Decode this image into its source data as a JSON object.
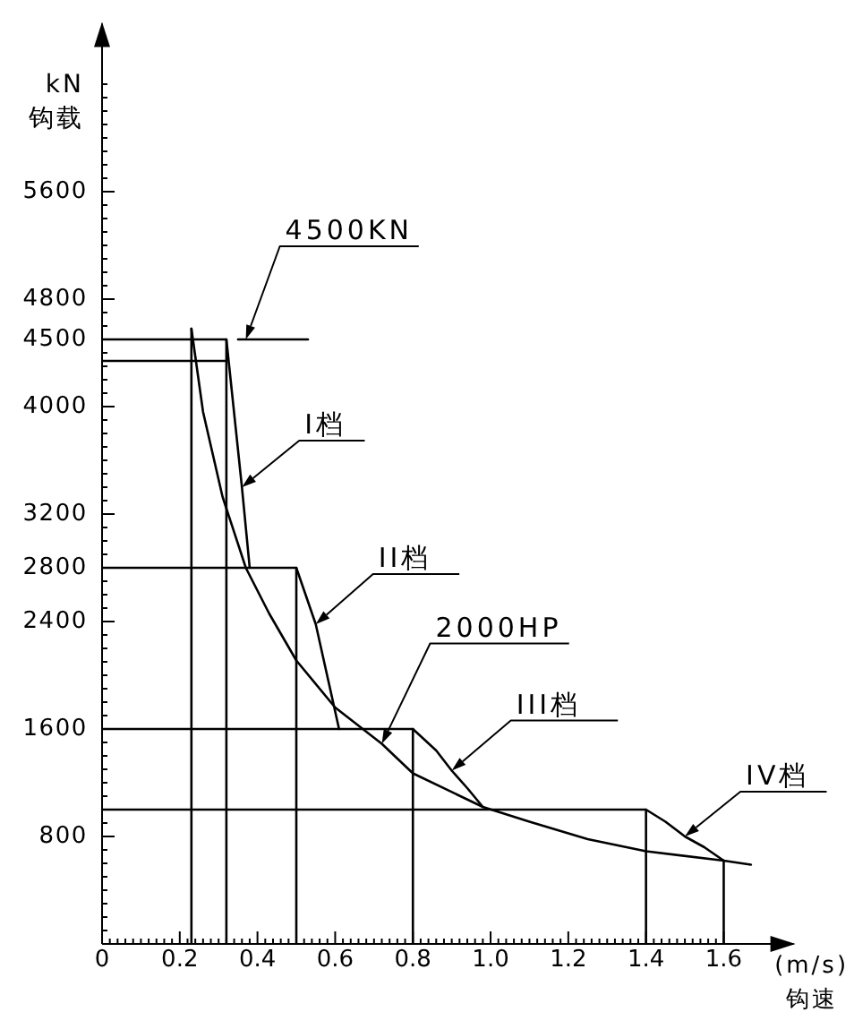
{
  "chart_data": {
    "type": "line",
    "xlabel": "(m/s) 钩速",
    "ylabel": "kN 钩载",
    "xlim": [
      0,
      1.78
    ],
    "ylim": [
      0,
      6850
    ],
    "xticks": [
      0,
      {
        "value": 0.02,
        "label": null
      },
      {
        "value": 0.04,
        "label": null
      },
      {
        "value": 0.06,
        "label": null
      },
      {
        "value": 0.08,
        "label": null
      },
      {
        "value": 0.1,
        "label": null
      },
      {
        "value": 0.12,
        "label": null
      },
      {
        "value": 0.14,
        "label": null
      },
      {
        "value": 0.16,
        "label": null
      },
      {
        "value": 0.18,
        "label": null
      },
      0.2,
      {
        "value": 0.22,
        "label": null
      },
      {
        "value": 0.24,
        "label": null
      },
      {
        "value": 0.26,
        "label": null
      },
      {
        "value": 0.28,
        "label": null
      },
      {
        "value": 0.3,
        "label": null
      },
      {
        "value": 0.32,
        "label": null
      },
      {
        "value": 0.34,
        "label": null
      },
      {
        "value": 0.36,
        "label": null
      },
      {
        "value": 0.38,
        "label": null
      },
      0.4,
      {
        "value": 0.42,
        "label": null
      },
      {
        "value": 0.44,
        "label": null
      },
      {
        "value": 0.46,
        "label": null
      },
      {
        "value": 0.48,
        "label": null
      },
      {
        "value": 0.5,
        "label": null
      },
      {
        "value": 0.52,
        "label": null
      },
      {
        "value": 0.54,
        "label": null
      },
      {
        "value": 0.56,
        "label": null
      },
      {
        "value": 0.58,
        "label": null
      },
      0.6,
      {
        "value": 0.62,
        "label": null
      },
      {
        "value": 0.64,
        "label": null
      },
      {
        "value": 0.66,
        "label": null
      },
      {
        "value": 0.68,
        "label": null
      },
      {
        "value": 0.7,
        "label": null
      },
      {
        "value": 0.72,
        "label": null
      },
      {
        "value": 0.74,
        "label": null
      },
      {
        "value": 0.76,
        "label": null
      },
      {
        "value": 0.78,
        "label": null
      },
      0.8,
      {
        "value": 0.82,
        "label": null
      },
      {
        "value": 0.84,
        "label": null
      },
      {
        "value": 0.86,
        "label": null
      },
      {
        "value": 0.88,
        "label": null
      },
      {
        "value": 0.9,
        "label": null
      },
      {
        "value": 0.92,
        "label": null
      },
      {
        "value": 0.94,
        "label": null
      },
      {
        "value": 0.96,
        "label": null
      },
      {
        "value": 0.98,
        "label": null
      },
      {
        "value": 1,
        "label": "1.0"
      },
      {
        "value": 1.02,
        "label": null
      },
      {
        "value": 1.04,
        "label": null
      },
      {
        "value": 1.06,
        "label": null
      },
      {
        "value": 1.08,
        "label": null
      },
      {
        "value": 1.1,
        "label": null
      },
      {
        "value": 1.12,
        "label": null
      },
      {
        "value": 1.14,
        "label": null
      },
      {
        "value": 1.16,
        "label": null
      },
      {
        "value": 1.18,
        "label": null
      },
      1.2,
      {
        "value": 1.22,
        "label": null
      },
      {
        "value": 1.24,
        "label": null
      },
      {
        "value": 1.26,
        "label": null
      },
      {
        "value": 1.28,
        "label": null
      },
      {
        "value": 1.3,
        "label": null
      },
      {
        "value": 1.32,
        "label": null
      },
      {
        "value": 1.34,
        "label": null
      },
      {
        "value": 1.36,
        "label": null
      },
      {
        "value": 1.38,
        "label": null
      },
      1.4,
      {
        "value": 1.42,
        "label": null
      },
      {
        "value": 1.44,
        "label": null
      },
      {
        "value": 1.46,
        "label": null
      },
      {
        "value": 1.48,
        "label": null
      },
      {
        "value": 1.5,
        "label": null
      },
      {
        "value": 1.52,
        "label": null
      },
      {
        "value": 1.54,
        "label": null
      },
      {
        "value": 1.56,
        "label": null
      },
      {
        "value": 1.58,
        "label": null
      },
      1.6
    ],
    "yticks": [
      {
        "value": 0,
        "label": null
      },
      {
        "value": 100,
        "label": null
      },
      {
        "value": 200,
        "label": null
      },
      {
        "value": 300,
        "label": null
      },
      {
        "value": 400,
        "label": null
      },
      {
        "value": 500,
        "label": null
      },
      {
        "value": 600,
        "label": null
      },
      {
        "value": 700,
        "label": null
      },
      800,
      {
        "value": 900,
        "label": null
      },
      {
        "value": 1000,
        "label": null
      },
      {
        "value": 1100,
        "label": null
      },
      {
        "value": 1200,
        "label": null
      },
      {
        "value": 1300,
        "label": null
      },
      {
        "value": 1400,
        "label": null
      },
      {
        "value": 1500,
        "label": null
      },
      1600,
      {
        "value": 1700,
        "label": null
      },
      {
        "value": 1800,
        "label": null
      },
      {
        "value": 1900,
        "label": null
      },
      {
        "value": 2000,
        "label": null
      },
      {
        "value": 2100,
        "label": null
      },
      {
        "value": 2200,
        "label": null
      },
      {
        "value": 2300,
        "label": null
      },
      2400,
      {
        "value": 2500,
        "label": null
      },
      {
        "value": 2600,
        "label": null
      },
      {
        "value": 2700,
        "label": null
      },
      2800,
      {
        "value": 2900,
        "label": null
      },
      {
        "value": 3000,
        "label": null
      },
      {
        "value": 3100,
        "label": null
      },
      3200,
      {
        "value": 3300,
        "label": null
      },
      {
        "value": 3400,
        "label": null
      },
      {
        "value": 3500,
        "label": null
      },
      {
        "value": 3600,
        "label": null
      },
      {
        "value": 3700,
        "label": null
      },
      {
        "value": 3800,
        "label": null
      },
      {
        "value": 3900,
        "label": null
      },
      4000,
      {
        "value": 4100,
        "label": null
      },
      {
        "value": 4200,
        "label": null
      },
      {
        "value": 4300,
        "label": null
      },
      {
        "value": 4400,
        "label": null
      },
      4500,
      {
        "value": 4600,
        "label": null
      },
      {
        "value": 4700,
        "label": null
      },
      4800,
      {
        "value": 4900,
        "label": null
      },
      {
        "value": 5000,
        "label": null
      },
      {
        "value": 5100,
        "label": null
      },
      {
        "value": 5200,
        "label": null
      },
      {
        "value": 5300,
        "label": null
      },
      {
        "value": 5400,
        "label": null
      },
      {
        "value": 5500,
        "label": null
      },
      5600,
      {
        "value": 5700,
        "label": null
      },
      {
        "value": 5800,
        "label": null
      },
      {
        "value": 5900,
        "label": null
      },
      {
        "value": 6000,
        "label": null
      },
      {
        "value": 6100,
        "label": null
      },
      {
        "value": 6200,
        "label": null
      },
      {
        "value": 6300,
        "label": null
      },
      {
        "value": 6400,
        "label": null
      }
    ],
    "series": [
      {
        "color": "#000000",
        "x": [
          0,
          0.32,
          0.36,
          0.38
        ],
        "values": [
          4500,
          4500,
          3400,
          2800
        ]
      },
      {
        "color": "#000000",
        "x": [
          0,
          0.5,
          0.55,
          0.61
        ],
        "values": [
          2800,
          2800,
          2380,
          1600
        ]
      },
      {
        "color": "#000000",
        "x": [
          0,
          0.8,
          0.86,
          0.9,
          0.94,
          0.98
        ],
        "values": [
          1600,
          1600,
          1440,
          1290,
          1160,
          1020
        ]
      },
      {
        "color": "#000000",
        "x": [
          0,
          1.4,
          1.45,
          1.5,
          1.55,
          1.6
        ],
        "values": [
          1000,
          1000,
          910,
          800,
          720,
          620
        ]
      },
      {
        "color": "#000000",
        "x": [
          0.23,
          0.26,
          0.31,
          0.37,
          0.43,
          0.5,
          0.6,
          0.72,
          0.8,
          0.98,
          1.1,
          1.25,
          1.4,
          1.6,
          1.67
        ],
        "values": [
          4580,
          3960,
          3330,
          2800,
          2460,
          2110,
          1760,
          1490,
          1270,
          1020,
          910,
          780,
          690,
          620,
          590
        ]
      },
      {
        "color": "#000000",
        "x": [
          0.23,
          0.23
        ],
        "values": [
          0,
          4580
        ]
      },
      {
        "color": "#000000",
        "x": [
          0.32,
          0.32
        ],
        "values": [
          0,
          4500
        ]
      },
      {
        "color": "#000000",
        "x": [
          0.5,
          0.5
        ],
        "values": [
          0,
          2800
        ]
      },
      {
        "color": "#000000",
        "x": [
          0.8,
          0.8
        ],
        "values": [
          0,
          1600
        ]
      },
      {
        "color": "#000000",
        "x": [
          1.4,
          1.4
        ],
        "values": [
          0,
          1000
        ]
      },
      {
        "color": "#000000",
        "x": [
          1.6,
          1.6
        ],
        "values": [
          0,
          620
        ]
      },
      {
        "color": "#000000",
        "x": [
          0,
          0.32
        ],
        "values": [
          4340,
          4340
        ]
      },
      {
        "color": "#000000",
        "x": [
          0.35,
          0.53
        ],
        "values": [
          4500,
          4500
        ]
      }
    ],
    "annotations": [
      {
        "text": "4500KN",
        "x": 0.37,
        "y": 4500
      },
      {
        "text": "I档",
        "x": 0.36,
        "y": 3400
      },
      {
        "text": "II档",
        "x": 0.55,
        "y": 2380
      },
      {
        "text": "2000HP",
        "x": 0.72,
        "y": 1490
      },
      {
        "text": "III档",
        "x": 0.9,
        "y": 1290
      },
      {
        "text": "IV档",
        "x": 1.5,
        "y": 800
      }
    ]
  }
}
